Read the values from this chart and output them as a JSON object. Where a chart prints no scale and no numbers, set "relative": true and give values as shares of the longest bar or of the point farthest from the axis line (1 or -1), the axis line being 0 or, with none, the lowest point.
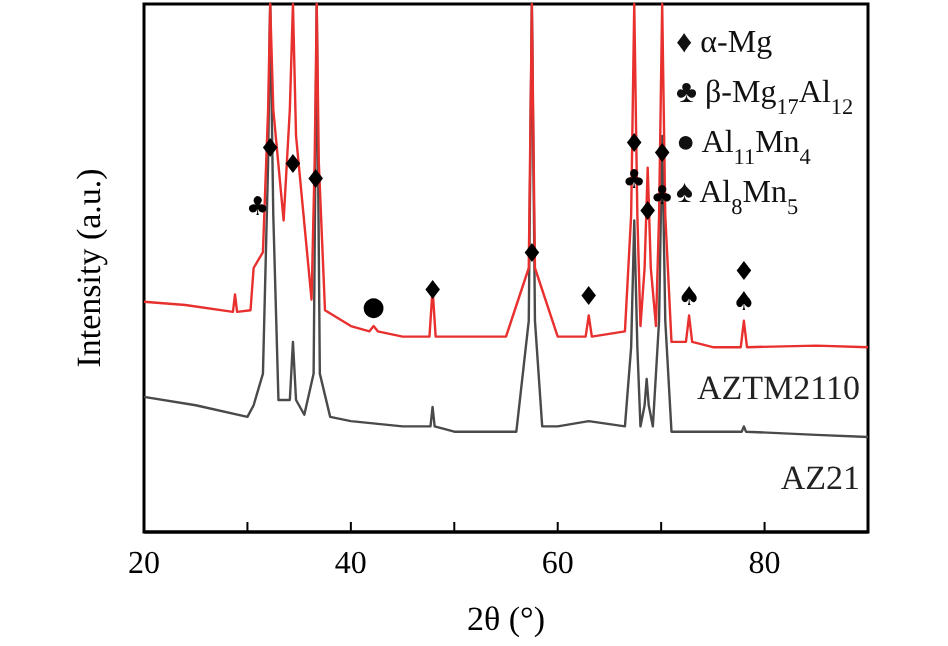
{
  "chart_data": {
    "type": "line",
    "relative": true,
    "xlabel": "2θ (°)",
    "ylabel": "Intensity (a.u.)",
    "xlim": [
      20,
      90
    ],
    "xticks": [
      20,
      {
        "value": 30,
        "label": null
      },
      40,
      {
        "value": 50,
        "label": null
      },
      60,
      {
        "value": 70,
        "label": null
      },
      80
    ],
    "grid": false,
    "series": [
      {
        "name": "AZTM2110",
        "color": "#e8302e",
        "x": [
          20,
          24,
          28.6,
          28.8,
          29,
          30.3,
          30.6,
          31.5,
          32.0,
          32.2,
          32.5,
          33.5,
          34.1,
          34.4,
          34.7,
          36.2,
          36.5,
          36.7,
          36.9,
          37.5,
          40,
          41.8,
          42.2,
          42.6,
          45,
          47.6,
          47.9,
          48.2,
          50,
          55,
          57.2,
          57.5,
          57.8,
          60,
          62.7,
          63.0,
          63.3,
          66.5,
          67.1,
          67.4,
          67.7,
          68.0,
          68.4,
          68.7,
          69.0,
          69.5,
          69.8,
          70.1,
          70.4,
          71,
          72.4,
          72.7,
          73.0,
          75,
          77.7,
          78.0,
          78.3,
          85,
          90
        ],
        "values": [
          0.436,
          0.43,
          0.417,
          0.45,
          0.417,
          0.42,
          0.5,
          0.53,
          0.8,
          1,
          0.8,
          0.59,
          0.8,
          1,
          0.75,
          0.44,
          0.7,
          1,
          0.7,
          0.42,
          0.39,
          0.38,
          0.39,
          0.38,
          0.37,
          0.37,
          0.46,
          0.37,
          0.37,
          0.37,
          0.5,
          1,
          0.5,
          0.37,
          0.37,
          0.41,
          0.37,
          0.38,
          0.6,
          1,
          0.6,
          0.39,
          0.5,
          0.69,
          0.5,
          0.39,
          0.6,
          1,
          0.6,
          0.36,
          0.36,
          0.41,
          0.36,
          0.35,
          0.35,
          0.4,
          0.35,
          0.353,
          0.35
        ]
      },
      {
        "name": "AZ21",
        "color": "#4a4a4a",
        "x": [
          20,
          25,
          30,
          30.6,
          31.5,
          32.0,
          32.2,
          32.5,
          33,
          34.1,
          34.4,
          34.7,
          35.5,
          36.4,
          36.7,
          37.0,
          38,
          40,
          45,
          47.7,
          47.9,
          48.1,
          50,
          56,
          57.2,
          57.5,
          57.8,
          58.5,
          60,
          63,
          66.5,
          67.1,
          67.4,
          67.7,
          68.0,
          68.4,
          68.6,
          68.8,
          69.2,
          69.8,
          70.1,
          70.4,
          71,
          77.8,
          78.0,
          78.2,
          85,
          90
        ],
        "values": [
          0.256,
          0.24,
          0.218,
          0.24,
          0.3,
          0.7,
          1,
          0.6,
          0.25,
          0.25,
          0.36,
          0.25,
          0.222,
          0.3,
          1,
          0.3,
          0.218,
          0.21,
          0.2,
          0.2,
          0.237,
          0.2,
          0.19,
          0.19,
          0.4,
          1,
          0.4,
          0.2,
          0.2,
          0.21,
          0.2,
          0.35,
          0.59,
          0.35,
          0.2,
          0.24,
          0.29,
          0.24,
          0.2,
          0.4,
          0.75,
          0.4,
          0.19,
          0.19,
          0.2,
          0.19,
          0.184,
          0.18
        ]
      }
    ],
    "annotations": [
      "♦ α-Mg",
      "♣ β-Mg$_{17}$Al$_{12}$",
      "● Al$_{11}$Mn$_{4}$",
      "♠ Al$_{8}$Mn$_{5}$",
      {
        "text": "♣",
        "x": 31.0,
        "y": 0.58
      },
      {
        "text": "♦",
        "x": 32.2,
        "y": 0.69
      },
      {
        "text": "♦",
        "x": 34.4,
        "y": 0.66
      },
      {
        "text": "♦",
        "x": 36.6,
        "y": 0.63
      },
      {
        "text": "●",
        "x": 42.2,
        "y": 0.39
      },
      {
        "text": "♦",
        "x": 47.9,
        "y": 0.42
      },
      {
        "text": "♦",
        "x": 57.5,
        "y": 0.49
      },
      {
        "text": "♦",
        "x": 63.0,
        "y": 0.41
      },
      {
        "text": "♦",
        "x": 67.4,
        "y": 0.7
      },
      {
        "text": "♣",
        "x": 67.4,
        "y": 0.63
      },
      {
        "text": "♦",
        "x": 68.7,
        "y": 0.57
      },
      {
        "text": "♦",
        "x": 70.1,
        "y": 0.68
      },
      {
        "text": "♣",
        "x": 70.1,
        "y": 0.6
      },
      {
        "text": "♠",
        "x": 72.7,
        "y": 0.41
      },
      {
        "text": "♠",
        "x": 78.0,
        "y": 0.4
      },
      {
        "text": "♦",
        "x": 78.0,
        "y": 0.4
      }
    ]
  }
}
